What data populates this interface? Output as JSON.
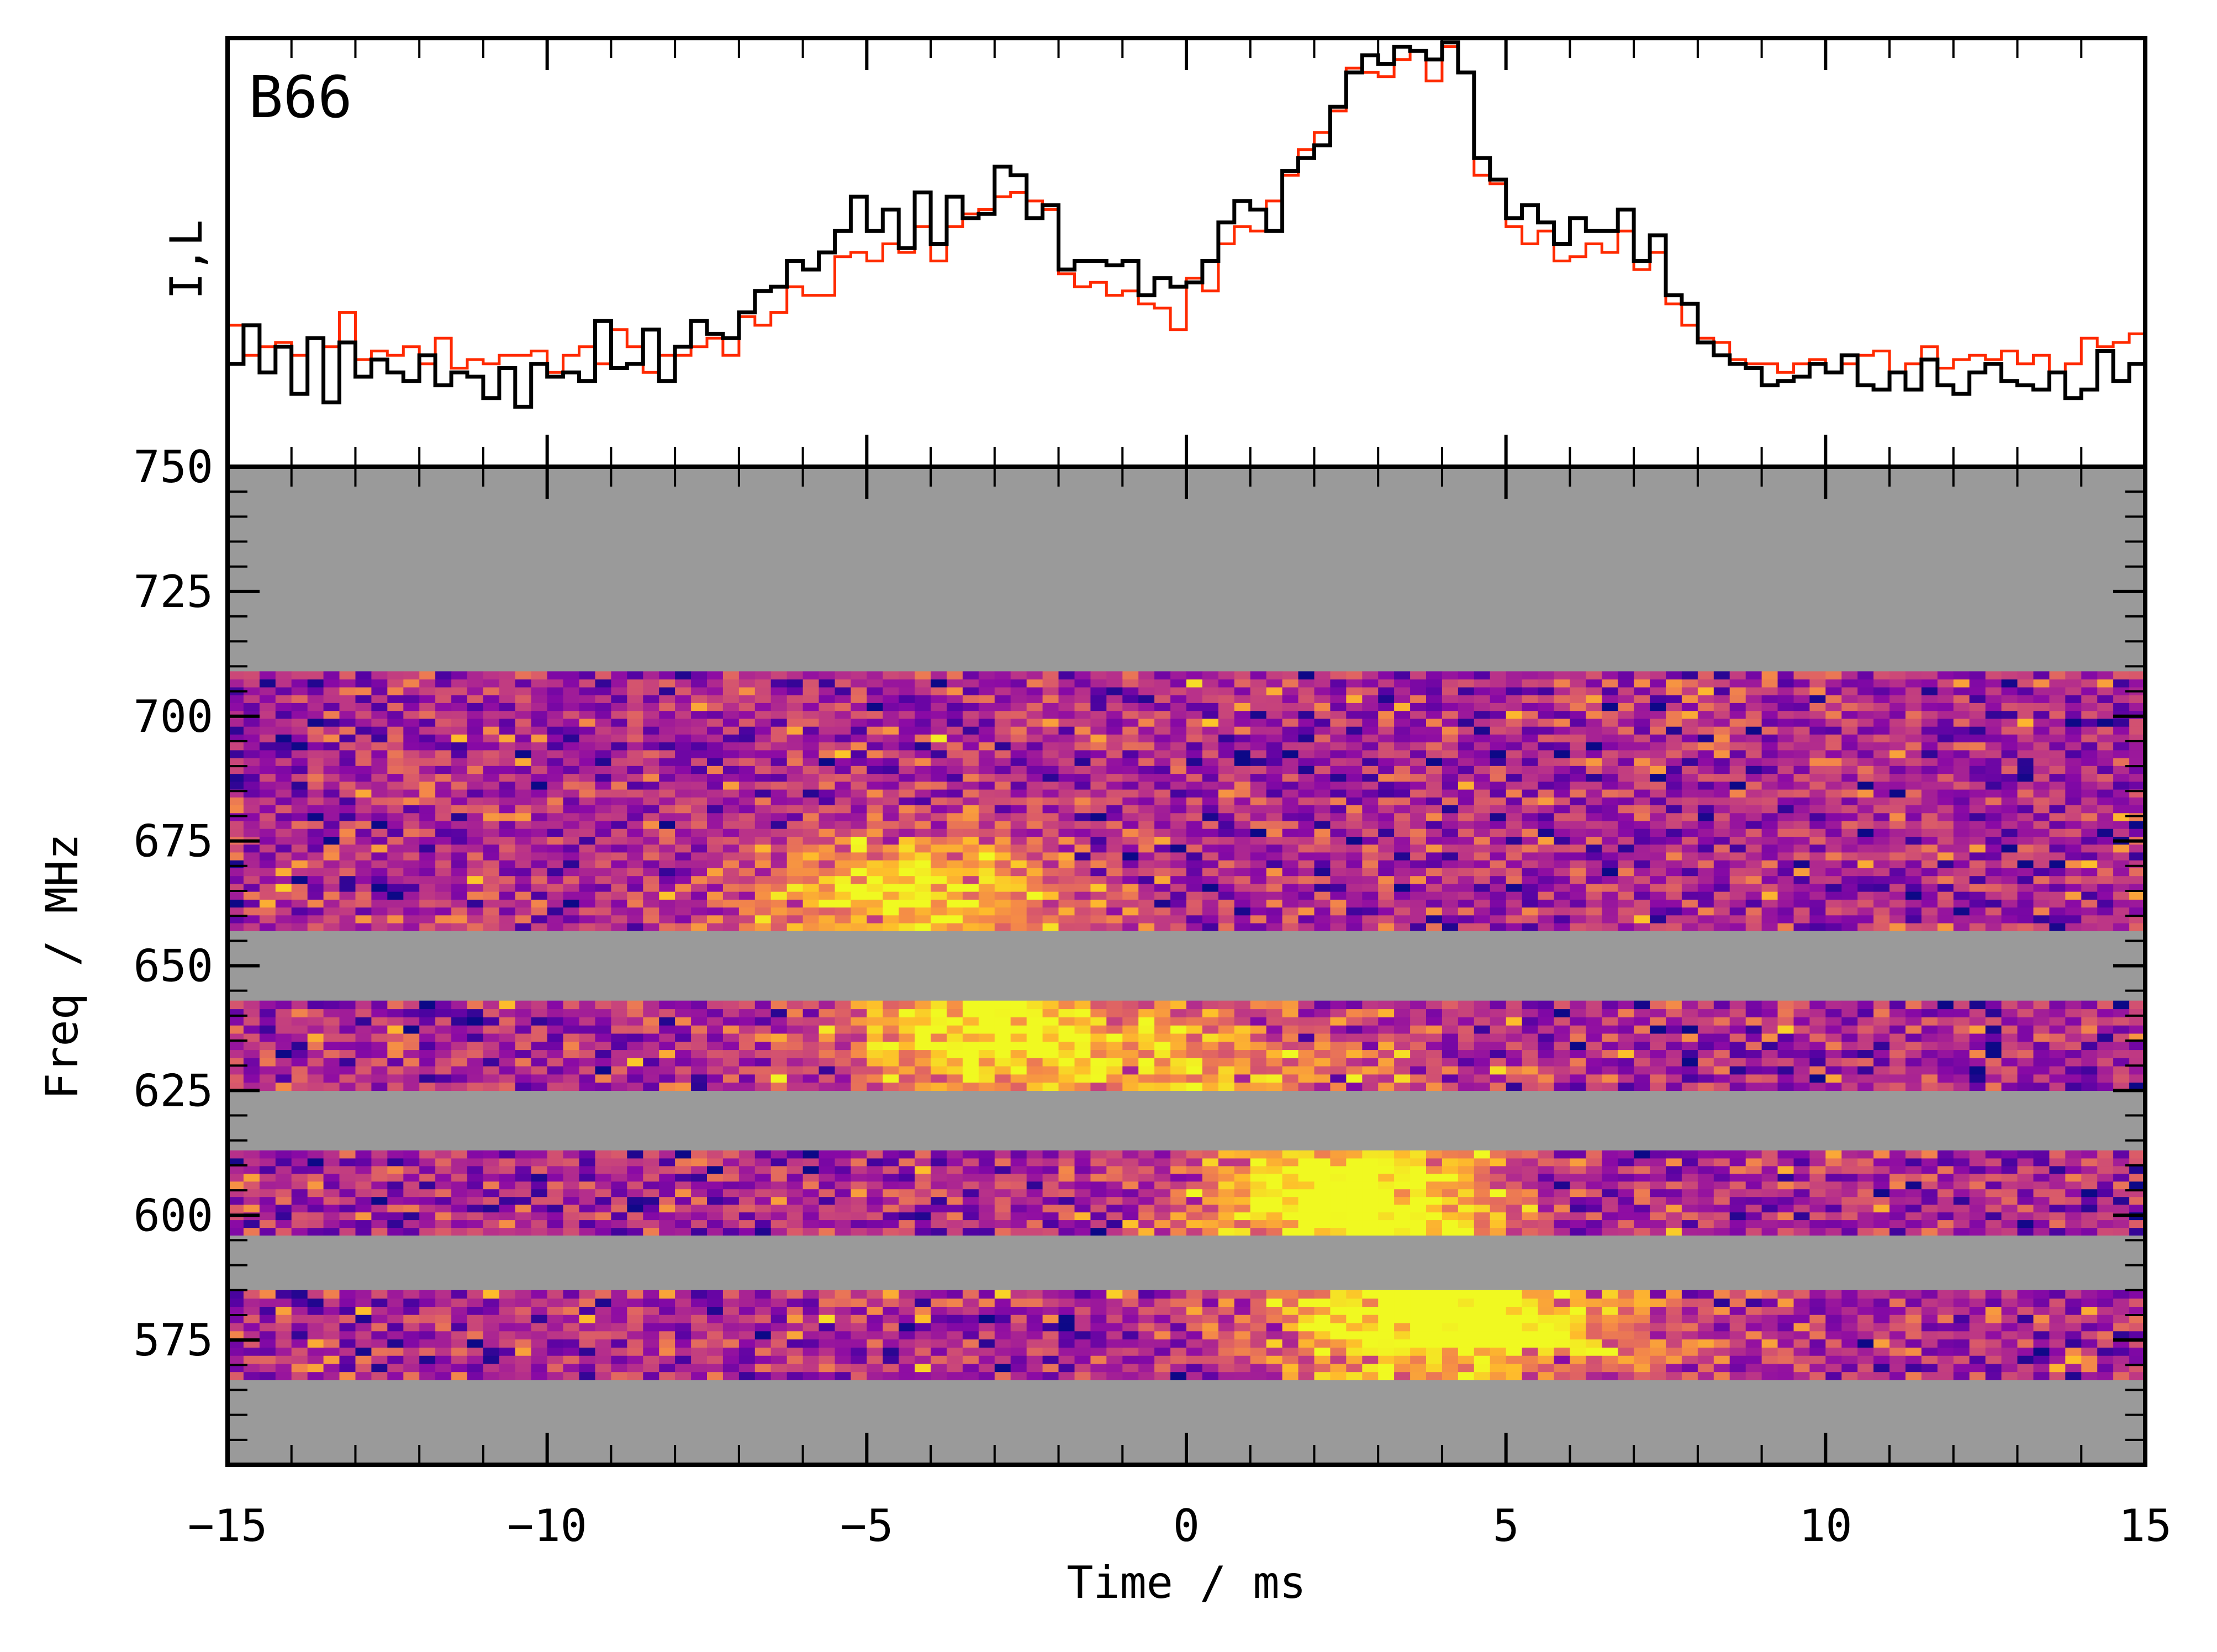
{
  "chart_data": [
    {
      "type": "line",
      "panel": "profile",
      "title": "B66",
      "ylabel": "I,L",
      "xlim": [
        -15,
        15
      ],
      "bin_width_ms": 0.25,
      "ylim": [
        0,
        1
      ],
      "series": [
        {
          "name": "I",
          "color": "#000000",
          "values": [
            0.24,
            0.33,
            0.22,
            0.28,
            0.17,
            0.3,
            0.15,
            0.29,
            0.21,
            0.25,
            0.22,
            0.2,
            0.26,
            0.19,
            0.22,
            0.21,
            0.16,
            0.23,
            0.14,
            0.24,
            0.21,
            0.22,
            0.2,
            0.34,
            0.23,
            0.24,
            0.32,
            0.2,
            0.28,
            0.34,
            0.31,
            0.3,
            0.36,
            0.41,
            0.42,
            0.48,
            0.46,
            0.5,
            0.55,
            0.63,
            0.55,
            0.6,
            0.51,
            0.64,
            0.52,
            0.63,
            0.58,
            0.59,
            0.7,
            0.68,
            0.58,
            0.61,
            0.46,
            0.48,
            0.48,
            0.47,
            0.48,
            0.4,
            0.44,
            0.42,
            0.43,
            0.48,
            0.57,
            0.62,
            0.6,
            0.55,
            0.69,
            0.72,
            0.75,
            0.84,
            0.92,
            0.96,
            0.94,
            0.98,
            0.97,
            0.95,
            0.99,
            0.92,
            0.72,
            0.67,
            0.58,
            0.61,
            0.57,
            0.52,
            0.58,
            0.55,
            0.55,
            0.6,
            0.48,
            0.54,
            0.4,
            0.38,
            0.29,
            0.26,
            0.24,
            0.23,
            0.19,
            0.2,
            0.21,
            0.24,
            0.22,
            0.26,
            0.19,
            0.18,
            0.22,
            0.18,
            0.25,
            0.19,
            0.17,
            0.22,
            0.24,
            0.2,
            0.19,
            0.18,
            0.22,
            0.16,
            0.18,
            0.27,
            0.2,
            0.24
          ]
        },
        {
          "name": "L",
          "color": "#ff2a00",
          "values": [
            0.33,
            0.26,
            0.28,
            0.29,
            0.26,
            0.3,
            0.28,
            0.36,
            0.25,
            0.27,
            0.26,
            0.28,
            0.24,
            0.3,
            0.23,
            0.25,
            0.24,
            0.26,
            0.26,
            0.27,
            0.22,
            0.26,
            0.28,
            0.24,
            0.32,
            0.28,
            0.22,
            0.26,
            0.26,
            0.28,
            0.3,
            0.26,
            0.35,
            0.33,
            0.36,
            0.42,
            0.4,
            0.4,
            0.49,
            0.5,
            0.48,
            0.52,
            0.5,
            0.56,
            0.48,
            0.56,
            0.59,
            0.6,
            0.63,
            0.64,
            0.62,
            0.6,
            0.45,
            0.42,
            0.43,
            0.4,
            0.41,
            0.38,
            0.37,
            0.32,
            0.44,
            0.41,
            0.52,
            0.56,
            0.55,
            0.62,
            0.68,
            0.74,
            0.78,
            0.83,
            0.93,
            0.92,
            0.91,
            0.95,
            0.97,
            0.9,
            0.98,
            0.92,
            0.68,
            0.66,
            0.56,
            0.52,
            0.55,
            0.48,
            0.49,
            0.52,
            0.5,
            0.55,
            0.46,
            0.5,
            0.38,
            0.33,
            0.3,
            0.29,
            0.25,
            0.24,
            0.24,
            0.22,
            0.24,
            0.25,
            0.22,
            0.24,
            0.26,
            0.27,
            0.22,
            0.24,
            0.28,
            0.23,
            0.25,
            0.26,
            0.25,
            0.27,
            0.24,
            0.26,
            0.22,
            0.24,
            0.3,
            0.28,
            0.29,
            0.31
          ]
        }
      ]
    },
    {
      "type": "heatmap",
      "panel": "waterfall",
      "xlabel": "Time / ms",
      "ylabel": "Freq / MHz",
      "xlim": [
        -15,
        15
      ],
      "ylim": [
        550,
        750
      ],
      "xticks": [
        -15,
        -10,
        -5,
        0,
        5,
        10,
        15
      ],
      "xtick_labels": [
        "−15",
        "−10",
        "−5",
        "0",
        "5",
        "10",
        "15"
      ],
      "yticks": [
        750,
        725,
        700,
        675,
        650,
        625,
        600,
        575
      ],
      "ytick_labels": [
        "750",
        "725",
        "700",
        "675",
        "650",
        "625",
        "600",
        "575"
      ],
      "colormap": "plasma",
      "masked_color": "#9a9a9a",
      "channel_width_mhz": 1.6,
      "time_bin_ms": 0.25,
      "valid_bands_mhz": [
        [
          657,
          709
        ],
        [
          625,
          643
        ],
        [
          596,
          613
        ],
        [
          567,
          585
        ]
      ],
      "emission_components": [
        {
          "t_ms": -4.2,
          "f_mhz": 665,
          "sigma_t_ms": 1.6,
          "sigma_f_mhz": 9,
          "amplitude": 0.6
        },
        {
          "t_ms": -3.0,
          "f_mhz": 636,
          "sigma_t_ms": 1.8,
          "sigma_f_mhz": 10,
          "amplitude": 0.65
        },
        {
          "t_ms": 0.8,
          "f_mhz": 630,
          "sigma_t_ms": 1.6,
          "sigma_f_mhz": 8,
          "amplitude": 0.3
        },
        {
          "t_ms": 2.6,
          "f_mhz": 604,
          "sigma_t_ms": 1.5,
          "sigma_f_mhz": 10,
          "amplitude": 0.9
        },
        {
          "t_ms": 4.3,
          "f_mhz": 578,
          "sigma_t_ms": 1.9,
          "sigma_f_mhz": 8,
          "amplitude": 0.85
        }
      ],
      "noise_level": 0.17,
      "baseline_level": 0.38
    }
  ]
}
